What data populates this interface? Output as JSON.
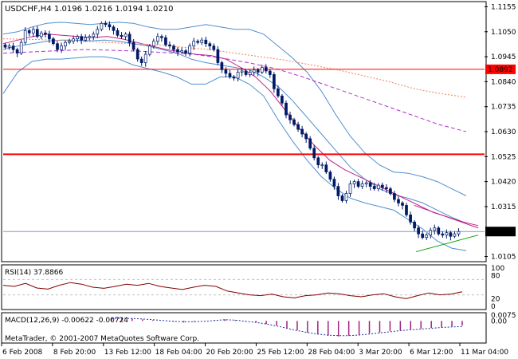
{
  "chart_data": {
    "type": "candlestick",
    "header": {
      "symbol": "USDCHF,H4",
      "ohlc": "1.0196 1.0216 1.0194 1.0210"
    },
    "price_axis": {
      "ticks": [
        "1.1155",
        "1.1050",
        "1.0945",
        "1.0840",
        "1.0735",
        "1.0630",
        "1.0525",
        "1.0420",
        "1.0315",
        "1.0105"
      ],
      "tick_values": [
        1.1155,
        1.105,
        1.0945,
        1.084,
        1.0735,
        1.063,
        1.0525,
        1.042,
        1.0315,
        1.0105
      ],
      "ylim": [
        1.009,
        1.117
      ],
      "price_labels": {
        "hline": "1.0892",
        "current": "1.0210"
      },
      "hline_value": 1.0892,
      "current_value": 1.021,
      "support_line_value": 1.0535
    },
    "time_axis": {
      "labels": [
        "6 Feb 2008",
        "8 Feb 20:00",
        "13 Feb 12:00",
        "18 Feb 04:00",
        "20 Feb 20:00",
        "25 Feb 12:00",
        "28 Feb 04:00",
        "3 Mar 20:00",
        "6 Mar 12:00",
        "11 Mar 04:00"
      ]
    },
    "candles_close": [
      1.0985,
      1.099,
      1.0975,
      1.096,
      1.1005,
      1.1055,
      1.1045,
      1.106,
      1.103,
      1.1045,
      1.104,
      1.102,
      1.1,
      1.0975,
      1.099,
      1.1005,
      1.101,
      1.102,
      1.103,
      1.1015,
      1.1025,
      1.103,
      1.104,
      1.106,
      1.1085,
      1.108,
      1.107,
      1.1055,
      1.1035,
      1.103,
      1.104,
      1.1005,
      1.0975,
      1.0935,
      1.092,
      1.0955,
      1.099,
      1.101,
      1.103,
      1.1025,
      1.0995,
      1.099,
      1.0975,
      1.0965,
      1.097,
      1.096,
      1.099,
      1.101,
      1.1005,
      1.1015,
      1.1,
      1.099,
      1.0975,
      1.092,
      1.089,
      1.0875,
      1.086,
      1.0855,
      1.088,
      1.0885,
      1.087,
      1.088,
      1.089,
      1.088,
      1.09,
      1.0885,
      1.087,
      1.081,
      1.078,
      1.075,
      1.07,
      1.068,
      1.066,
      1.064,
      1.062,
      1.06,
      1.056,
      1.052,
      1.049,
      1.049,
      1.046,
      1.043,
      1.04,
      1.036,
      1.034,
      1.037,
      1.041,
      1.042,
      1.04,
      1.041,
      1.0415,
      1.04,
      1.039,
      1.0405,
      1.0395,
      1.039,
      1.037,
      1.0345,
      1.033,
      1.032,
      1.028,
      1.025,
      1.0225,
      1.02,
      1.0185,
      1.0195,
      1.0215,
      1.0225,
      1.02,
      1.0195,
      1.0205,
      1.019,
      1.02,
      1.021
    ],
    "bollinger": {
      "upper": [
        1.104,
        1.105,
        1.107,
        1.1085,
        1.109,
        1.1085,
        1.108,
        1.1085,
        1.109,
        1.1085,
        1.107,
        1.106,
        1.106,
        1.107,
        1.108,
        1.107,
        1.106,
        1.106,
        1.104,
        1.099,
        1.094,
        1.088,
        1.08,
        1.07,
        1.061,
        1.054,
        1.049,
        1.046,
        1.0455,
        1.044,
        1.042,
        1.039,
        1.036
      ],
      "middle": [
        1.0975,
        1.099,
        1.1,
        1.101,
        1.1015,
        1.1015,
        1.1012,
        1.1015,
        1.101,
        1.1,
        1.099,
        1.0975,
        1.096,
        1.0935,
        1.092,
        1.091,
        1.09,
        1.089,
        1.086,
        1.082,
        1.076,
        1.069,
        1.062,
        1.055,
        1.048,
        1.043,
        1.039,
        1.0365,
        1.035,
        1.033,
        1.03,
        1.027,
        1.0245
      ],
      "lower": [
        1.079,
        1.088,
        1.0925,
        1.0935,
        1.0935,
        1.094,
        1.0945,
        1.0945,
        1.0935,
        1.091,
        1.0895,
        1.088,
        1.086,
        1.083,
        1.083,
        1.086,
        1.086,
        1.083,
        1.078,
        1.068,
        1.059,
        1.051,
        1.044,
        1.039,
        1.035,
        1.033,
        1.0315,
        1.03,
        1.026,
        1.022,
        1.017,
        1.014,
        1.013
      ]
    },
    "ma_fast": [
      1.1,
      1.1015,
      1.103,
      1.104,
      1.1035,
      1.103,
      1.1025,
      1.103,
      1.102,
      1.1005,
      1.099,
      1.0975,
      1.0965,
      1.0955,
      1.095,
      1.0935,
      1.09,
      1.086,
      1.08,
      1.072,
      1.064,
      1.057,
      1.051,
      1.047,
      1.044,
      1.041,
      1.038,
      1.035,
      1.032,
      1.029,
      1.027,
      1.025,
      1.0235
    ],
    "ma_slow_dashed": [
      1.096,
      1.0965,
      1.097,
      1.0975,
      1.0972,
      1.0968,
      1.0962,
      1.0955,
      1.094,
      1.092,
      1.0895,
      1.086,
      1.082,
      1.078,
      1.074,
      1.07,
      1.066,
      1.063
    ],
    "ma_slow_dotted": [
      1.102,
      1.1018,
      1.1015,
      1.101,
      1.1005,
      1.1,
      1.0995,
      1.0985,
      1.0975,
      1.096,
      1.0945,
      1.093,
      1.091,
      1.089,
      1.0865,
      1.084,
      1.081,
      1.079,
      1.0775
    ],
    "rsi": {
      "label": "RSI(14) 37.8866",
      "ticks": [
        "100",
        "80",
        "20",
        "0"
      ],
      "tick_values": [
        100,
        80,
        20,
        0
      ],
      "levels": [
        70,
        30
      ],
      "values": [
        55,
        52,
        60,
        48,
        45,
        55,
        62,
        58,
        50,
        47,
        52,
        58,
        55,
        60,
        52,
        48,
        44,
        50,
        55,
        52,
        40,
        35,
        30,
        28,
        32,
        25,
        22,
        28,
        30,
        35,
        33,
        28,
        25,
        30,
        33,
        25,
        20,
        28,
        35,
        30,
        32,
        38
      ]
    },
    "macd": {
      "label": "MACD(12,26,9) -0.00622 -0.00724",
      "ticks": [
        "0.0075",
        "0.00"
      ],
      "tick_values": [
        0.0075,
        0.0
      ],
      "ylim": [
        -0.0265,
        0.0085
      ],
      "histogram": [
        0.003,
        0.004,
        0.003,
        0.002,
        0.001,
        0.0,
        -0.001,
        -0.002,
        -0.001,
        0.0,
        0.001,
        0.002,
        0.001,
        -0.001,
        -0.002,
        -0.004,
        -0.006,
        -0.009,
        -0.012,
        -0.015,
        -0.017,
        -0.019,
        -0.02,
        -0.019,
        -0.018,
        -0.016,
        -0.015,
        -0.013,
        -0.012,
        -0.011,
        -0.01,
        -0.009,
        -0.008,
        -0.007,
        -0.006
      ],
      "signal": [
        0.003,
        0.0035,
        0.003,
        0.0025,
        0.0015,
        0.0005,
        -0.0005,
        -0.001,
        -0.001,
        -0.0005,
        0.0005,
        0.0015,
        0.001,
        -0.0005,
        -0.002,
        -0.004,
        -0.0065,
        -0.0095,
        -0.0125,
        -0.015,
        -0.017,
        -0.0185,
        -0.019,
        -0.019,
        -0.0183,
        -0.017,
        -0.0155,
        -0.014,
        -0.0125,
        -0.0115,
        -0.0105,
        -0.0095,
        -0.0085,
        -0.0078,
        -0.0072
      ]
    },
    "footer": "MetaTrader, © 2001-2007 MetaQuotes Software Corp."
  }
}
